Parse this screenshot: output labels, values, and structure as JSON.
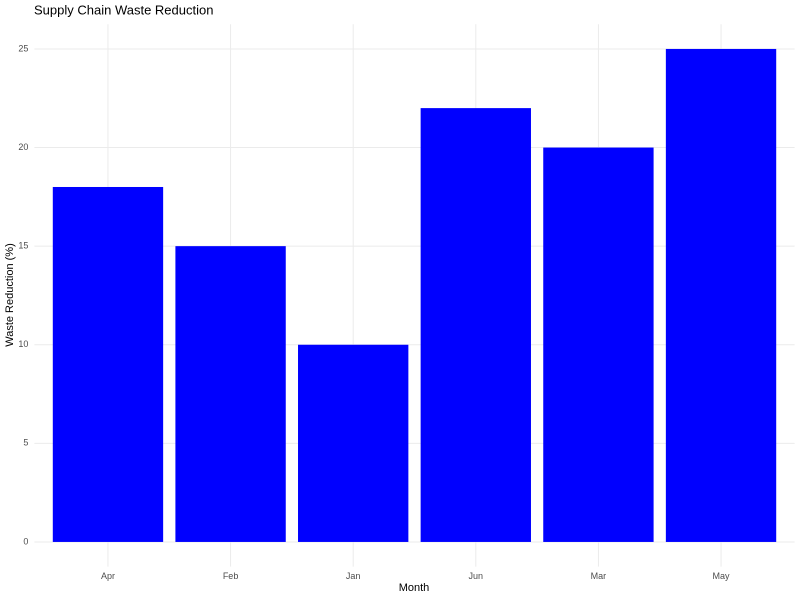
{
  "chart_data": {
    "type": "bar",
    "title": "Supply Chain Waste Reduction",
    "x_label": "Month",
    "y_label": "Waste Reduction (%)",
    "categories": [
      "Apr",
      "Feb",
      "Jan",
      "Jun",
      "Mar",
      "May"
    ],
    "values": [
      18,
      15,
      10,
      22,
      20,
      25
    ],
    "color": "#0000ff",
    "ylim": [
      -1.25,
      26.25
    ],
    "yticks": [
      0,
      5,
      10,
      15,
      20,
      25
    ],
    "grid": true
  }
}
